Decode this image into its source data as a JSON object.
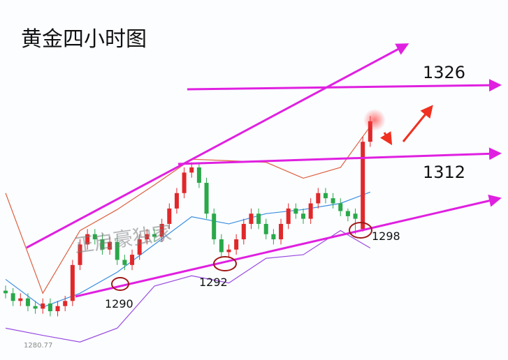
{
  "chart_data": {
    "type": "candlestick",
    "title": "黄金四小时图",
    "watermark": "正启豪独家",
    "annotations": {
      "level_1326": "1326",
      "level_1312": "1312",
      "low_1298": "1298",
      "low_1292": "1292",
      "low_1290": "1290",
      "axis_low": "1280.77"
    },
    "up_color": "#e0282a",
    "down_color": "#2aa84a",
    "ylim": [
      1272.5,
      1342.6
    ],
    "open": [
      1286,
      1285.5,
      1284,
      1284.5,
      1283,
      1282.5,
      1283.5,
      1282,
      1283,
      1284,
      1291,
      1295,
      1297,
      1296,
      1294,
      1295.5,
      1292,
      1291,
      1293,
      1296,
      1297,
      1296.5,
      1299,
      1302,
      1305,
      1309,
      1310,
      1307,
      1301,
      1296,
      1293.5,
      1294,
      1296,
      1299,
      1301,
      1299,
      1297,
      1296,
      1299,
      1302,
      1301,
      1300,
      1303,
      1305,
      1304,
      1303,
      1301.5,
      1301,
      1298,
      1315
    ],
    "high": [
      1287,
      1286.5,
      1285.5,
      1285.5,
      1284,
      1284.5,
      1284.5,
      1284,
      1285,
      1292,
      1296,
      1298,
      1298,
      1297,
      1296.5,
      1296.5,
      1293,
      1294,
      1297,
      1298,
      1298,
      1300,
      1303,
      1306,
      1310,
      1311,
      1311,
      1308,
      1302,
      1297,
      1295,
      1297,
      1300,
      1302,
      1302,
      1300,
      1298,
      1300,
      1303,
      1303,
      1302,
      1304,
      1306,
      1306,
      1305,
      1304,
      1302,
      1302,
      1316,
      1320
    ],
    "low": [
      1284.5,
      1283,
      1283,
      1282,
      1281.5,
      1281.5,
      1281,
      1281,
      1282,
      1283,
      1290,
      1294,
      1295,
      1293,
      1293,
      1291,
      1290,
      1290,
      1292,
      1295,
      1295.5,
      1295.5,
      1298,
      1301,
      1304,
      1308,
      1306,
      1300,
      1295,
      1292.5,
      1292.5,
      1293,
      1295,
      1298,
      1298,
      1296,
      1295,
      1295,
      1298,
      1300,
      1299,
      1299,
      1302,
      1303,
      1302,
      1300.5,
      1299.5,
      1297,
      1297.5,
      1314
    ],
    "close": [
      1285.5,
      1284,
      1284.5,
      1283,
      1282.5,
      1283.5,
      1282,
      1283,
      1284,
      1291,
      1295,
      1297,
      1296,
      1294,
      1295.5,
      1292,
      1291,
      1293,
      1296,
      1297,
      1296.5,
      1299,
      1302,
      1305,
      1309,
      1310,
      1307,
      1301,
      1296,
      1293.5,
      1294,
      1296,
      1299,
      1301,
      1299,
      1297,
      1296,
      1299,
      1302,
      1301,
      1300,
      1303,
      1305,
      1304,
      1303,
      1301.5,
      1300.5,
      1300,
      1315,
      1319
    ],
    "band_x": [
      0,
      5,
      10,
      15,
      20,
      25,
      30,
      35,
      40,
      45,
      49
    ],
    "series": [
      {
        "color": "#e06040",
        "values": [
          1305,
          1285.5,
          1297.7,
          1301.8,
          1306.6,
          1311.6,
          1311.3,
          1311,
          1307.9,
          1310,
          1318
        ]
      },
      {
        "color": "#3a8ee0",
        "values": [
          1288.2,
          1282.8,
          1285.5,
          1289.6,
          1295,
          1300.4,
          1299,
          1301,
          1301.8,
          1303,
          1305.2
        ]
      },
      {
        "color": "#9a4ae0",
        "values": [
          1278.7,
          1277.3,
          1276,
          1278.7,
          1286.9,
          1288.9,
          1287.5,
          1292.3,
          1293,
          1297.7,
          1294.3
        ]
      }
    ]
  }
}
